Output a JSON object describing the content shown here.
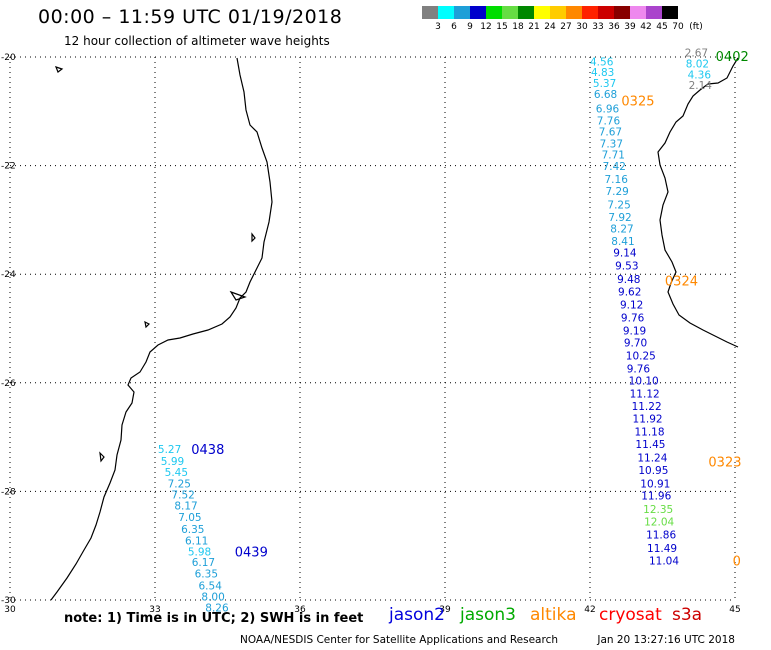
{
  "header": {
    "title": "00:00 – 11:59 UTC 01/19/2018",
    "subtitle": "12 hour collection of altimeter wave heights"
  },
  "colorbar": {
    "unit_label": "(ft)",
    "bins": [
      {
        "label": "3",
        "color": "#808080"
      },
      {
        "label": "6",
        "color": "#00ffff"
      },
      {
        "label": "9",
        "color": "#1e9fd8"
      },
      {
        "label": "12",
        "color": "#0000cc"
      },
      {
        "label": "15",
        "color": "#00dd00"
      },
      {
        "label": "18",
        "color": "#66dd44"
      },
      {
        "label": "21",
        "color": "#008800"
      },
      {
        "label": "24",
        "color": "#ffff00"
      },
      {
        "label": "27",
        "color": "#ffcc00"
      },
      {
        "label": "30",
        "color": "#ff8800"
      },
      {
        "label": "33",
        "color": "#ff2200"
      },
      {
        "label": "36",
        "color": "#cc0000"
      },
      {
        "label": "39",
        "color": "#880000"
      },
      {
        "label": "42",
        "color": "#ee88ee"
      },
      {
        "label": "45",
        "color": "#aa44cc"
      },
      {
        "label": "70",
        "color": "#000000"
      }
    ]
  },
  "axes": {
    "lon_labels": [
      "30",
      "33",
      "36",
      "39",
      "42",
      "45"
    ],
    "lat_labels": [
      "-20",
      "-22",
      "-24",
      "-26",
      "-28",
      "-30"
    ],
    "lon_range": [
      30,
      45
    ],
    "lat_range": [
      -30,
      -20
    ]
  },
  "tracks": [
    {
      "id": "track-east",
      "points": [
        {
          "lat": -20.08,
          "lon": 42.0,
          "swh": "4.56",
          "color": "#1ec8f0"
        },
        {
          "lat": -20.28,
          "lon": 42.02,
          "swh": "4.83",
          "color": "#1ec8f0"
        },
        {
          "lat": -20.48,
          "lon": 42.06,
          "swh": "5.37",
          "color": "#1ec8f0"
        },
        {
          "lat": -20.68,
          "lon": 42.08,
          "swh": "6.68",
          "color": "#1e9fd8"
        },
        {
          "lat": -20.95,
          "lon": 42.12,
          "swh": "6.96",
          "color": "#1e9fd8"
        },
        {
          "lat": -21.17,
          "lon": 42.14,
          "swh": "7.76",
          "color": "#1e9fd8"
        },
        {
          "lat": -21.37,
          "lon": 42.18,
          "swh": "7.67",
          "color": "#1e9fd8"
        },
        {
          "lat": -21.59,
          "lon": 42.2,
          "swh": "7.37",
          "color": "#1e9fd8"
        },
        {
          "lat": -21.8,
          "lon": 42.24,
          "swh": "7.71",
          "color": "#1e9fd8"
        },
        {
          "lat": -22.01,
          "lon": 42.26,
          "swh": "7.42",
          "color": "#1e9fd8"
        },
        {
          "lat": -22.25,
          "lon": 42.3,
          "swh": "7.16",
          "color": "#1e9fd8"
        },
        {
          "lat": -22.47,
          "lon": 42.32,
          "swh": "7.29",
          "color": "#1e9fd8"
        },
        {
          "lat": -22.72,
          "lon": 42.36,
          "swh": "7.25",
          "color": "#1e9fd8"
        },
        {
          "lat": -22.95,
          "lon": 42.38,
          "swh": "7.92",
          "color": "#1e9fd8"
        },
        {
          "lat": -23.16,
          "lon": 42.42,
          "swh": "8.27",
          "color": "#1e9fd8"
        },
        {
          "lat": -23.39,
          "lon": 42.44,
          "swh": "8.41",
          "color": "#1e9fd8"
        },
        {
          "lat": -23.6,
          "lon": 42.48,
          "swh": "9.14",
          "color": "#0000cc"
        },
        {
          "lat": -23.84,
          "lon": 42.52,
          "swh": "9.53",
          "color": "#0000cc"
        },
        {
          "lat": -24.09,
          "lon": 42.56,
          "swh": "9.48",
          "color": "#0000cc"
        },
        {
          "lat": -24.32,
          "lon": 42.58,
          "swh": "9.62",
          "color": "#0000cc"
        },
        {
          "lat": -24.56,
          "lon": 42.62,
          "swh": "9.12",
          "color": "#0000cc"
        },
        {
          "lat": -24.8,
          "lon": 42.64,
          "swh": "9.76",
          "color": "#0000cc"
        },
        {
          "lat": -25.04,
          "lon": 42.68,
          "swh": "9.19",
          "color": "#0000cc"
        },
        {
          "lat": -25.26,
          "lon": 42.7,
          "swh": "9.70",
          "color": "#0000cc"
        },
        {
          "lat": -25.5,
          "lon": 42.74,
          "swh": "10.25",
          "color": "#0000cc"
        },
        {
          "lat": -25.74,
          "lon": 42.76,
          "swh": "9.76",
          "color": "#0000cc"
        },
        {
          "lat": -25.96,
          "lon": 42.8,
          "swh": "10.10",
          "color": "#0000cc"
        },
        {
          "lat": -26.2,
          "lon": 42.82,
          "swh": "11.12",
          "color": "#0000cc"
        },
        {
          "lat": -26.43,
          "lon": 42.86,
          "swh": "11.22",
          "color": "#0000cc"
        },
        {
          "lat": -26.66,
          "lon": 42.88,
          "swh": "11.92",
          "color": "#0000cc"
        },
        {
          "lat": -26.9,
          "lon": 42.92,
          "swh": "11.18",
          "color": "#0000cc"
        },
        {
          "lat": -27.13,
          "lon": 42.94,
          "swh": "11.45",
          "color": "#0000cc"
        },
        {
          "lat": -27.38,
          "lon": 42.98,
          "swh": "11.24",
          "color": "#0000cc"
        },
        {
          "lat": -27.61,
          "lon": 43.0,
          "swh": "10.95",
          "color": "#0000cc"
        },
        {
          "lat": -27.85,
          "lon": 43.04,
          "swh": "10.91",
          "color": "#0000cc"
        },
        {
          "lat": -28.08,
          "lon": 43.06,
          "swh": "11.96",
          "color": "#0000cc"
        },
        {
          "lat": -28.32,
          "lon": 43.1,
          "swh": "12.35",
          "color": "#66dd44"
        },
        {
          "lat": -28.55,
          "lon": 43.12,
          "swh": "12.04",
          "color": "#66dd44"
        },
        {
          "lat": -28.79,
          "lon": 43.16,
          "swh": "11.86",
          "color": "#0000cc"
        },
        {
          "lat": -29.04,
          "lon": 43.18,
          "swh": "11.49",
          "color": "#0000cc"
        },
        {
          "lat": -29.27,
          "lon": 43.22,
          "swh": "11.04",
          "color": "#0000cc"
        }
      ]
    },
    {
      "id": "track-ne",
      "points": [
        {
          "lat": -19.92,
          "lon": 43.96,
          "swh": "2.67",
          "color": "#808080"
        },
        {
          "lat": -20.12,
          "lon": 43.98,
          "swh": "8.02",
          "color": "#1ec8f0"
        },
        {
          "lat": -20.32,
          "lon": 44.02,
          "swh": "4.36",
          "color": "#1ec8f0"
        },
        {
          "lat": -20.52,
          "lon": 44.04,
          "swh": "2.14",
          "color": "#808080"
        }
      ]
    },
    {
      "id": "track-sw",
      "points": [
        {
          "lat": -27.22,
          "lon": 33.06,
          "swh": "5.27",
          "color": "#1ec8f0"
        },
        {
          "lat": -27.44,
          "lon": 33.12,
          "swh": "5.99",
          "color": "#1ec8f0"
        },
        {
          "lat": -27.64,
          "lon": 33.2,
          "swh": "5.45",
          "color": "#1ec8f0"
        },
        {
          "lat": -27.85,
          "lon": 33.26,
          "swh": "7.25",
          "color": "#1e9fd8"
        },
        {
          "lat": -28.06,
          "lon": 33.34,
          "swh": "7.52",
          "color": "#1e9fd8"
        },
        {
          "lat": -28.26,
          "lon": 33.4,
          "swh": "8.17",
          "color": "#1e9fd8"
        },
        {
          "lat": -28.47,
          "lon": 33.48,
          "swh": "7.05",
          "color": "#1e9fd8"
        },
        {
          "lat": -28.69,
          "lon": 33.54,
          "swh": "6.35",
          "color": "#1e9fd8"
        },
        {
          "lat": -28.9,
          "lon": 33.62,
          "swh": "6.11",
          "color": "#1e9fd8"
        },
        {
          "lat": -29.11,
          "lon": 33.68,
          "swh": "5.98",
          "color": "#1ec8f0"
        },
        {
          "lat": -29.3,
          "lon": 33.76,
          "swh": "6.17",
          "color": "#1e9fd8"
        },
        {
          "lat": -29.51,
          "lon": 33.82,
          "swh": "6.35",
          "color": "#1e9fd8"
        },
        {
          "lat": -29.73,
          "lon": 33.9,
          "swh": "6.54",
          "color": "#1e9fd8"
        },
        {
          "lat": -29.94,
          "lon": 33.96,
          "swh": "8.00",
          "color": "#1e9fd8"
        },
        {
          "lat": -30.14,
          "lon": 34.04,
          "swh": "8.26",
          "color": "#1e9fd8"
        }
      ]
    }
  ],
  "time_labels": [
    {
      "text": "0402",
      "lat": -19.98,
      "lon": 44.6,
      "color": "#008800"
    },
    {
      "text": "0325",
      "lat": -20.8,
      "lon": 42.65,
      "color": "#ff8800"
    },
    {
      "text": "0324",
      "lat": -24.12,
      "lon": 43.55,
      "color": "#ff8800"
    },
    {
      "text": "0323",
      "lat": -27.45,
      "lon": 44.45,
      "color": "#ff8800"
    },
    {
      "text": "0",
      "lat": -29.27,
      "lon": 44.95,
      "color": "#ff8800"
    },
    {
      "text": "0438",
      "lat": -27.22,
      "lon": 33.75,
      "color": "#0000cc"
    },
    {
      "text": "0439",
      "lat": -29.11,
      "lon": 34.65,
      "color": "#0000cc"
    }
  ],
  "note": "note:  1) Time is in UTC;  2) SWH is in feet",
  "satellites": [
    {
      "name": "jason2",
      "color": "#0000dd"
    },
    {
      "name": "jason3",
      "color": "#00aa00"
    },
    {
      "name": "altika",
      "color": "#ff8800"
    },
    {
      "name": "cryosat",
      "color": "#ff0000"
    },
    {
      "name": "s3a",
      "color": "#cc0000"
    }
  ],
  "footer": {
    "credit": "NOAA/NESDIS Center for Satellite Applications and Research",
    "timestamp": "Jan 20 13:27:16 UTC 2018"
  }
}
